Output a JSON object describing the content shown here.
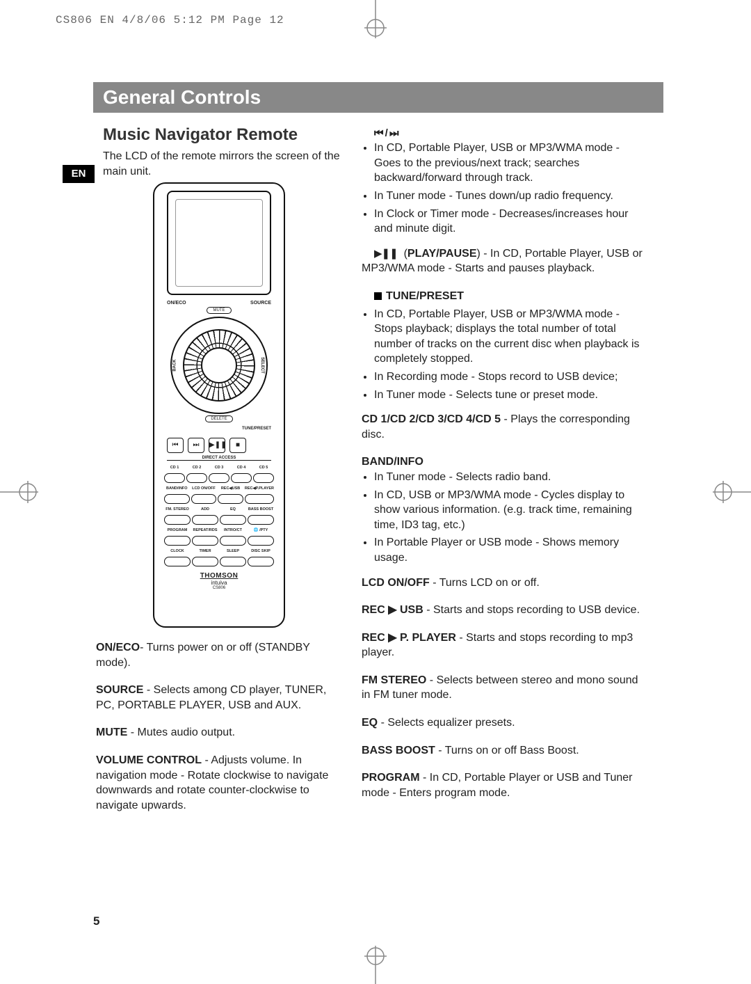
{
  "print_header": "CS806 EN  4/8/06  5:12 PM  Page 12",
  "banner_title": "General Controls",
  "subtitle": "Music Navigator Remote",
  "intro": "The LCD of the remote mirrors the screen of the main unit.",
  "lang_tab": "EN",
  "page_number": "5",
  "remote": {
    "top_left": "ON/ECO",
    "top_right": "SOURCE",
    "mute": "MUTE",
    "back": "BACK",
    "select": "SELECT",
    "delete": "DELETE",
    "tune_preset": "TUNE/PRESET",
    "transport": [
      "⏮",
      "⏭",
      "▶❚❚",
      "■"
    ],
    "direct_access": "DIRECT ACCESS",
    "row_cd": [
      "CD 1",
      "CD 2",
      "CD 3",
      "CD 4",
      "CD 5"
    ],
    "row_a": [
      "BAND/INFO",
      "LCD ON/OFF",
      "REC◀USB",
      "REC◀P.PLAYER"
    ],
    "row_b": [
      "FM. STEREO",
      "ADD",
      "EQ",
      "BASS BOOST"
    ],
    "row_c": [
      "PROGRAM",
      "REPEAT/RDS",
      "INTRO/CT",
      "🌐 /PTY"
    ],
    "row_d": [
      "CLOCK",
      "TIMER",
      "SLEEP",
      "DISC SKIP"
    ],
    "brand": "THOMSON",
    "brand_sub": "intuiva",
    "model": "CS806"
  },
  "left_entries": [
    {
      "bold": "ON/ECO",
      "text": "- Turns power on or off (STANDBY mode)."
    },
    {
      "bold": "SOURCE",
      "text": " - Selects among CD player, TUNER, PC, PORTABLE PLAYER, USB and AUX."
    },
    {
      "bold": "MUTE",
      "text": " - Mutes audio output."
    },
    {
      "bold": "VOLUME CONTROL",
      "text": " - Adjusts volume. In navigation mode  - Rotate clockwise to navigate downwards and rotate counter-clockwise to navigate upwards."
    }
  ],
  "right": {
    "skip_heading": "⏮  /  ⏭",
    "skip_bullets": [
      "In CD, Portable Player, USB or MP3/WMA mode - Goes to the previous/next track; searches backward/forward through track.",
      "In Tuner mode  - Tunes down/up radio frequency.",
      "In Clock or Timer mode  - Decreases/increases hour and minute digit."
    ],
    "play_sym": "▶❚❚",
    "play_bold": "PLAY/PAUSE",
    "play_text": ") - In CD, Portable Player, USB or MP3/WMA mode  - Starts and pauses playback.",
    "tune_heading": "TUNE/PRESET",
    "tune_bullets": [
      "In CD, Portable Player, USB or MP3/WMA mode  - Stops playback; displays the total number of total number of tracks on the current disc when playback is completely stopped.",
      "In Recording mode  - Stops record to USB device;",
      "In Tuner mode  - Selects tune or preset mode."
    ],
    "cd_entry_bold": "CD 1/CD 2/CD 3/CD 4/CD 5",
    "cd_entry_text": " - Plays the corresponding disc.",
    "band_heading": "BAND/INFO",
    "band_bullets": [
      "In Tuner mode  - Selects radio band.",
      "In CD, USB or MP3/WMA mode  - Cycles display to show various information. (e.g. track time, remaining time, ID3 tag, etc.)",
      "In Portable Player or USB mode  - Shows memory usage."
    ],
    "simple_entries": [
      {
        "bold": "LCD ON/OFF",
        "text": " - Turns LCD on or off."
      },
      {
        "bold": "REC ▶ USB",
        "text": " - Starts and stops recording to USB device."
      },
      {
        "bold": "REC ▶ P. PLAYER",
        "text": " - Starts and stops recording to mp3 player."
      },
      {
        "bold": "FM STEREO",
        "text": " - Selects between stereo and mono sound in FM tuner mode."
      },
      {
        "bold": "EQ",
        "text": " - Selects equalizer presets."
      },
      {
        "bold": "BASS BOOST",
        "text": " - Turns on or off Bass Boost."
      },
      {
        "bold": "PROGRAM",
        "text": " - In CD, Portable Player or USB and Tuner mode  - Enters program mode."
      }
    ]
  }
}
